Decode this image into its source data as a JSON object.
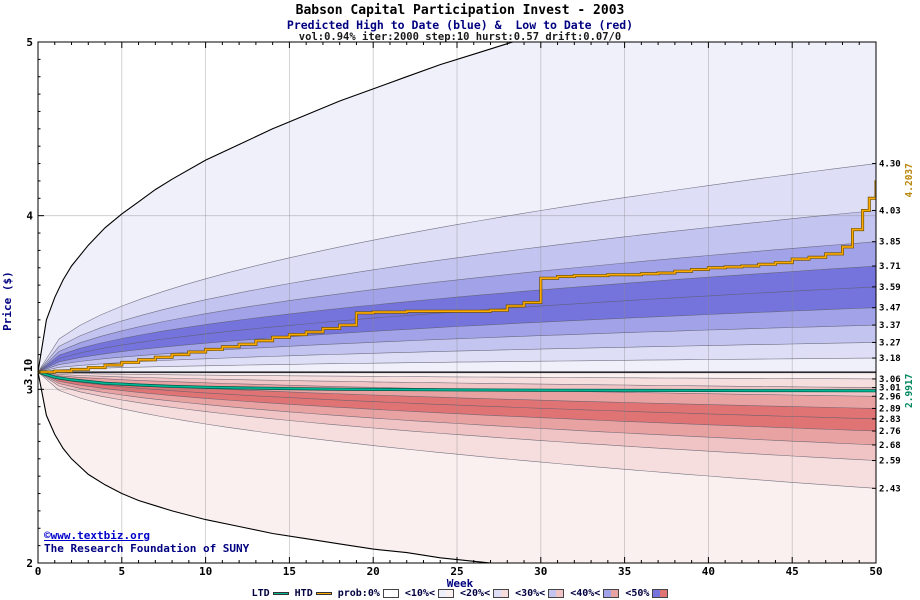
{
  "header": {
    "title": "Babson Capital Participation Invest - 2003",
    "subtitle": "Predicted High to Date (blue) &  Low to Date (red)",
    "params": "vol:0.94% iter:2000 step:10 hurst:0.57 drift:0.07/0"
  },
  "watermark": {
    "line1": "©www.textbiz.org",
    "line2": "The Research Foundation of SUNY"
  },
  "axes": {
    "x": {
      "label": "Week",
      "min": 0,
      "max": 50,
      "major_ticks": [
        0,
        5,
        10,
        15,
        20,
        25,
        30,
        35,
        40,
        45,
        50
      ]
    },
    "y": {
      "label": "Price ($)",
      "min": 2,
      "max": 5,
      "major_ticks": [
        2,
        3,
        4,
        5
      ]
    },
    "start_price_label": "3.10"
  },
  "legend": {
    "items": [
      {
        "label": "LTD",
        "type": "line",
        "color": "#00b894"
      },
      {
        "label": "HTD",
        "type": "line",
        "color": "#ffaa00"
      },
      {
        "label": "prob:0%",
        "type": "band",
        "level": 0
      },
      {
        "label": "<10%<",
        "type": "band",
        "level": 1
      },
      {
        "label": "<20%<",
        "type": "band",
        "level": 2
      },
      {
        "label": "<30%<",
        "type": "band",
        "level": 3
      },
      {
        "label": "<40%<",
        "type": "band",
        "level": 4
      },
      {
        "label": "<50%",
        "type": "band",
        "level": 5
      }
    ]
  },
  "colors": {
    "navy": "#000080",
    "link_blue": "#0000cc",
    "htd_line": "#ffaa00",
    "htd_edge": "#6e5200",
    "htd_label": "#b8860b",
    "ltd_line": "#00b894",
    "ltd_edge": "#00544a",
    "ltd_label": "#00885f",
    "blue_levels": [
      "#f0f0fb",
      "#dedef7",
      "#c4c4f0",
      "#a2a2e8",
      "#7474dc"
    ],
    "red_levels": [
      "#fbf0f0",
      "#f7dede",
      "#f0c4c4",
      "#e8a2a2",
      "#e07474"
    ],
    "grid": "#8a8a8a",
    "boundary": "#555566",
    "envelope": "#000000",
    "axis": "#000000",
    "tick_text": "#000000"
  },
  "chart_data": {
    "type": "area",
    "subtype": "probability-fan",
    "title": "Babson Capital Participation Invest - 2003",
    "xlabel": "Week",
    "ylabel": "Price ($)",
    "x_range": [
      0,
      50
    ],
    "y_range": [
      2,
      5
    ],
    "grid": true,
    "start_price": 3.1,
    "high_to_date": {
      "description": "blue fan: predicted high-to-date percentile boundaries, values at week 50",
      "min_boundary": 3.1,
      "percentile_boundaries_at_week50": {
        "p10": 3.18,
        "p20": 3.27,
        "p30": 3.37,
        "p40": 3.47,
        "p50": 3.59,
        "p60": 3.71,
        "p70": 3.85,
        "p80": 4.03,
        "p90": 4.3
      },
      "max_envelope_points": [
        [
          0,
          3.1
        ],
        [
          0.5,
          3.4
        ],
        [
          1,
          3.53
        ],
        [
          1.5,
          3.63
        ],
        [
          2,
          3.71
        ],
        [
          3,
          3.83
        ],
        [
          4,
          3.93
        ],
        [
          5,
          4.01
        ],
        [
          6,
          4.08
        ],
        [
          7,
          4.15
        ],
        [
          8,
          4.21
        ],
        [
          10,
          4.32
        ],
        [
          12,
          4.41
        ],
        [
          14,
          4.5
        ],
        [
          16,
          4.58
        ],
        [
          18,
          4.66
        ],
        [
          20,
          4.73
        ],
        [
          22,
          4.8
        ],
        [
          24,
          4.87
        ],
        [
          26,
          4.93
        ],
        [
          28,
          4.99
        ],
        [
          29,
          5.02
        ],
        [
          50,
          5.05
        ]
      ],
      "final_value": 4.2037,
      "step_series": [
        [
          0,
          3.1
        ],
        [
          1,
          3.105
        ],
        [
          2,
          3.115
        ],
        [
          3,
          3.125
        ],
        [
          4,
          3.14
        ],
        [
          5,
          3.155
        ],
        [
          6,
          3.17
        ],
        [
          7,
          3.185
        ],
        [
          8,
          3.2
        ],
        [
          9,
          3.215
        ],
        [
          10,
          3.23
        ],
        [
          11,
          3.245
        ],
        [
          12,
          3.26
        ],
        [
          13,
          3.28
        ],
        [
          14,
          3.3
        ],
        [
          15,
          3.315
        ],
        [
          16,
          3.33
        ],
        [
          17,
          3.35
        ],
        [
          18,
          3.37
        ],
        [
          19,
          3.44
        ],
        [
          20,
          3.445
        ],
        [
          22,
          3.45
        ],
        [
          24,
          3.45
        ],
        [
          26,
          3.45
        ],
        [
          27,
          3.455
        ],
        [
          28,
          3.48
        ],
        [
          29,
          3.5
        ],
        [
          30,
          3.64
        ],
        [
          31,
          3.65
        ],
        [
          32,
          3.655
        ],
        [
          34,
          3.66
        ],
        [
          36,
          3.665
        ],
        [
          37,
          3.67
        ],
        [
          38,
          3.68
        ],
        [
          39,
          3.69
        ],
        [
          40,
          3.7
        ],
        [
          41,
          3.705
        ],
        [
          42,
          3.71
        ],
        [
          43,
          3.72
        ],
        [
          44,
          3.73
        ],
        [
          45,
          3.75
        ],
        [
          46,
          3.76
        ],
        [
          47,
          3.78
        ],
        [
          48,
          3.82
        ],
        [
          48.6,
          3.92
        ],
        [
          49.2,
          4.03
        ],
        [
          49.6,
          4.1
        ],
        [
          50,
          4.2037
        ]
      ]
    },
    "low_to_date": {
      "description": "red fan: predicted low-to-date percentile boundaries, values at week 50",
      "max_boundary": 3.095,
      "percentile_boundaries_at_week50": {
        "p10": 3.06,
        "p20": 3.01,
        "p30": 2.96,
        "p40": 2.89,
        "p50": 2.83,
        "p60": 2.76,
        "p70": 2.68,
        "p80": 2.59,
        "p90": 2.43
      },
      "min_envelope_points": [
        [
          0,
          3.1
        ],
        [
          0.5,
          2.85
        ],
        [
          1,
          2.74
        ],
        [
          1.5,
          2.66
        ],
        [
          2,
          2.6
        ],
        [
          3,
          2.51
        ],
        [
          4,
          2.45
        ],
        [
          5,
          2.4
        ],
        [
          6,
          2.36
        ],
        [
          7,
          2.33
        ],
        [
          8,
          2.3
        ],
        [
          10,
          2.25
        ],
        [
          12,
          2.21
        ],
        [
          14,
          2.17
        ],
        [
          16,
          2.14
        ],
        [
          18,
          2.11
        ],
        [
          20,
          2.08
        ],
        [
          22,
          2.06
        ],
        [
          24,
          2.03
        ],
        [
          26,
          2.01
        ],
        [
          28,
          1.99
        ],
        [
          30,
          1.97
        ],
        [
          50,
          1.93
        ]
      ],
      "final_value": 2.9917,
      "series": [
        [
          0,
          3.1
        ],
        [
          0.5,
          3.085
        ],
        [
          1,
          3.07
        ],
        [
          2,
          3.055
        ],
        [
          3,
          3.045
        ],
        [
          4,
          3.035
        ],
        [
          5,
          3.03
        ],
        [
          6,
          3.025
        ],
        [
          8,
          3.017
        ],
        [
          10,
          3.012
        ],
        [
          12,
          3.008
        ],
        [
          15,
          3.004
        ],
        [
          18,
          3.001
        ],
        [
          21,
          2.999
        ],
        [
          25,
          2.997
        ],
        [
          30,
          2.995
        ],
        [
          35,
          2.994
        ],
        [
          40,
          2.993
        ],
        [
          45,
          2.9925
        ],
        [
          50,
          2.9917
        ]
      ]
    },
    "right_axis_labels": [
      "4.30",
      "4.03",
      "3.85",
      "3.71",
      "3.59",
      "3.47",
      "3.37",
      "3.27",
      "3.18",
      "3.06",
      "3.01",
      "2.96",
      "2.89",
      "2.83",
      "2.76",
      "2.68",
      "2.59",
      "2.43"
    ],
    "final_markers": [
      {
        "label": "4.2037",
        "value": 4.2037,
        "series": "HTD"
      },
      {
        "label": "2.9917",
        "value": 2.9917,
        "series": "LTD"
      }
    ]
  }
}
